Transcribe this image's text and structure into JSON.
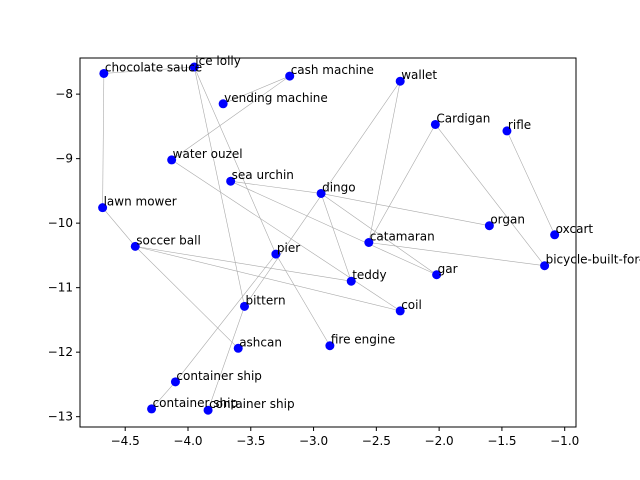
{
  "chart_data": {
    "type": "scatter",
    "xlim": [
      -4.86,
      -0.91
    ],
    "ylim": [
      -13.16,
      -7.44
    ],
    "x_ticks": [
      -4.5,
      -4.0,
      -3.5,
      -3.0,
      -2.5,
      -2.0,
      -1.5,
      -1.0
    ],
    "x_tick_labels": [
      "−4.5",
      "−4.0",
      "−3.5",
      "−3.0",
      "−2.5",
      "−2.0",
      "−1.5",
      "−1.0"
    ],
    "y_ticks": [
      -13,
      -12,
      -11,
      -10,
      -9,
      -8
    ],
    "y_tick_labels": [
      "−13",
      "−12",
      "−11",
      "−10",
      "−9",
      "−8"
    ],
    "grid": false,
    "point_color": "#0000ff",
    "edge_color": "#aaaaaa",
    "points": [
      {
        "label": "chocolate sauce",
        "x": -4.67,
        "y": -7.68
      },
      {
        "label": "ice lolly",
        "x": -3.95,
        "y": -7.58
      },
      {
        "label": "cash machine",
        "x": -3.19,
        "y": -7.72
      },
      {
        "label": "wallet",
        "x": -2.31,
        "y": -7.8
      },
      {
        "label": "vending machine",
        "x": -3.72,
        "y": -8.15
      },
      {
        "label": "Cardigan",
        "x": -2.03,
        "y": -8.47
      },
      {
        "label": "rifle",
        "x": -1.46,
        "y": -8.57
      },
      {
        "label": "water ouzel",
        "x": -4.13,
        "y": -9.02
      },
      {
        "label": "sea urchin",
        "x": -3.66,
        "y": -9.35
      },
      {
        "label": "dingo",
        "x": -2.94,
        "y": -9.54
      },
      {
        "label": "lawn mower",
        "x": -4.68,
        "y": -9.76
      },
      {
        "label": "organ",
        "x": -1.6,
        "y": -10.04
      },
      {
        "label": "oxcart",
        "x": -1.08,
        "y": -10.18
      },
      {
        "label": "soccer ball",
        "x": -4.42,
        "y": -10.36
      },
      {
        "label": "catamaran",
        "x": -2.56,
        "y": -10.3
      },
      {
        "label": "pier",
        "x": -3.3,
        "y": -10.48
      },
      {
        "label": "bicycle-built-for-two",
        "x": -1.16,
        "y": -10.66
      },
      {
        "label": "gar",
        "x": -2.02,
        "y": -10.8
      },
      {
        "label": "teddy",
        "x": -2.7,
        "y": -10.9
      },
      {
        "label": "bittern",
        "x": -3.55,
        "y": -11.29
      },
      {
        "label": "coil",
        "x": -2.31,
        "y": -11.36
      },
      {
        "label": "ashcan",
        "x": -3.6,
        "y": -11.94
      },
      {
        "label": "fire engine",
        "x": -2.87,
        "y": -11.9
      },
      {
        "label": "container ship",
        "x": -4.1,
        "y": -12.46
      },
      {
        "label": "container ship",
        "x": -4.29,
        "y": -12.88
      },
      {
        "label": "container ship",
        "x": -3.84,
        "y": -12.9
      }
    ],
    "edges": [
      [
        "chocolate sauce",
        "lawn mower"
      ],
      [
        "chocolate sauce",
        "ice lolly"
      ],
      [
        "lawn mower",
        "soccer ball"
      ],
      [
        "soccer ball",
        "teddy"
      ],
      [
        "soccer ball",
        "coil"
      ],
      [
        "soccer ball",
        "ashcan"
      ],
      [
        "ice lolly",
        "bittern"
      ],
      [
        "ice lolly",
        "pier"
      ],
      [
        "pier",
        "fire engine"
      ],
      [
        "vending machine",
        "cash machine"
      ],
      [
        "cash machine",
        "water ouzel"
      ],
      [
        "water ouzel",
        "coil"
      ],
      [
        "wallet",
        "catamaran"
      ],
      [
        "wallet",
        "bittern"
      ],
      [
        "sea urchin",
        "dingo"
      ],
      [
        "sea urchin",
        "gar"
      ],
      [
        "dingo",
        "organ"
      ],
      [
        "dingo",
        "gar"
      ],
      [
        "dingo",
        "teddy"
      ],
      [
        "Cardigan",
        "catamaran"
      ],
      [
        "Cardigan",
        "bicycle-built-for-two"
      ],
      [
        "rifle",
        "oxcart"
      ],
      [
        "catamaran",
        "bicycle-built-for-two"
      ],
      [
        "pier",
        "container ship 1"
      ],
      [
        "bittern",
        "container ship 3"
      ],
      [
        "container ship 1",
        "container ship 2"
      ]
    ]
  }
}
